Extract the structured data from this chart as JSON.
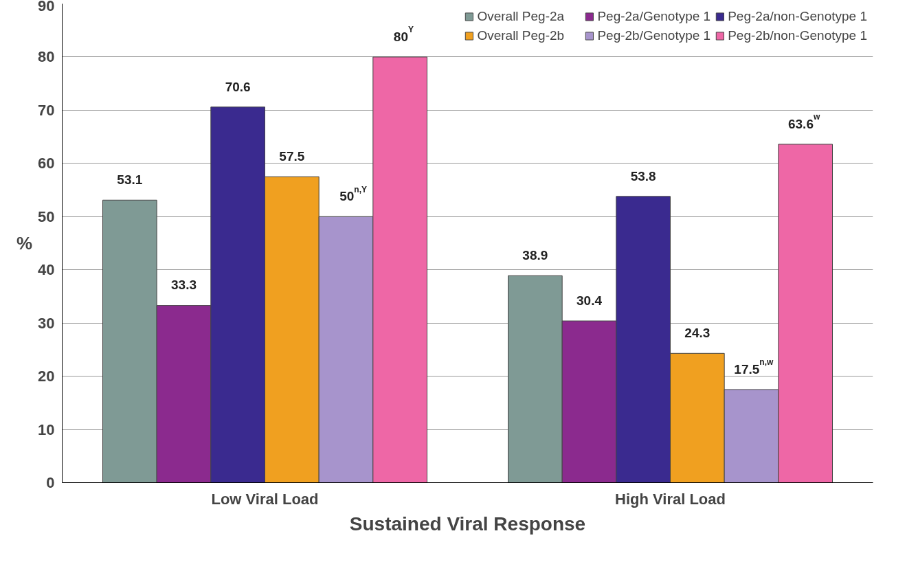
{
  "chart_data": {
    "type": "bar",
    "xlabel": "Sustained Viral Response",
    "ylabel": "%",
    "categories": [
      "Low Viral Load",
      "High Viral Load"
    ],
    "series": [
      {
        "name": "Overall Peg-2a",
        "color": "#7f9a95",
        "values": [
          53.1,
          38.9
        ],
        "value_labels": [
          "53.1",
          "38.9"
        ]
      },
      {
        "name": "Peg-2a/Genotype 1",
        "color": "#8b2a8e",
        "values": [
          33.3,
          30.4
        ],
        "value_labels": [
          "33.3",
          "30.4"
        ]
      },
      {
        "name": "Peg-2a/non-Genotype 1",
        "color": "#3a2a8f",
        "values": [
          70.6,
          53.8
        ],
        "value_labels": [
          "70.6",
          "53.8"
        ]
      },
      {
        "name": "Overall Peg-2b",
        "color": "#f0a020",
        "values": [
          57.5,
          24.3
        ],
        "value_labels": [
          "57.5",
          "24.3"
        ]
      },
      {
        "name": "Peg-2b/Genotype 1",
        "color": "#a794cc",
        "values": [
          50,
          17.5
        ],
        "value_labels": [
          "50$^{n,Y}$",
          "17.5$^{n,w}$"
        ]
      },
      {
        "name": "Peg-2b/non-Genotype 1",
        "color": "#ee67a6",
        "values": [
          80,
          63.6
        ],
        "value_labels": [
          "80$^{Y}$",
          "63.6$^{w}$"
        ]
      }
    ],
    "ylim": [
      0,
      90
    ],
    "yticks": [
      0,
      10,
      20,
      30,
      40,
      50,
      60,
      70,
      80,
      90
    ],
    "grid": "y",
    "legend": "top"
  }
}
